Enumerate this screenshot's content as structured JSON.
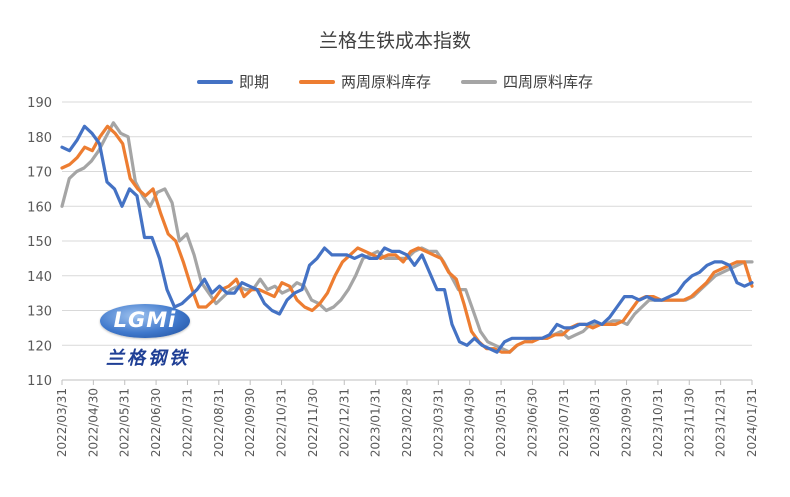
{
  "chart_data": {
    "type": "line",
    "title": "兰格生铁成本指数",
    "ylim": [
      110,
      190
    ],
    "yticks": [
      110,
      120,
      130,
      140,
      150,
      160,
      170,
      180,
      190
    ],
    "xtick_labels": [
      "2022/03/31",
      "2022/04/30",
      "2022/05/31",
      "2022/06/30",
      "2022/07/31",
      "2022/08/31",
      "2022/09/30",
      "2022/10/31",
      "2022/11/30",
      "2022/12/31",
      "2023/01/31",
      "2023/02/28",
      "2023/03/31",
      "2023/04/30",
      "2023/05/31",
      "2023/06/30",
      "2023/07/31",
      "2023/08/31",
      "2023/09/30",
      "2023/10/31",
      "2023/11/30",
      "2023/12/31",
      "2024/01/31"
    ],
    "legend_position": "top",
    "grid": true,
    "series": [
      {
        "name": "即期",
        "color": "#4472C4",
        "values": [
          177,
          176,
          179,
          183,
          181,
          178,
          167,
          165,
          160,
          165,
          163,
          151,
          151,
          145,
          136,
          131,
          132,
          134,
          136,
          139,
          135,
          137,
          135,
          135,
          138,
          137,
          136,
          132,
          130,
          129,
          133,
          135,
          136,
          143,
          145,
          148,
          146,
          146,
          146,
          145,
          146,
          145,
          145,
          148,
          147,
          147,
          146,
          143,
          146,
          141,
          136,
          136,
          126,
          121,
          120,
          122,
          120,
          119,
          118,
          121,
          122,
          122,
          122,
          122,
          122,
          123,
          126,
          125,
          125,
          126,
          126,
          127,
          126,
          128,
          131,
          134,
          134,
          133,
          134,
          133,
          133,
          134,
          135,
          138,
          140,
          141,
          143,
          144,
          144,
          143,
          138,
          137,
          138
        ]
      },
      {
        "name": "两周原料库存",
        "color": "#ED7D31",
        "values": [
          171,
          172,
          174,
          177,
          176,
          180,
          183,
          181,
          178,
          168,
          165,
          163,
          165,
          158,
          152,
          150,
          144,
          137,
          131,
          131,
          133,
          136,
          137,
          139,
          134,
          136,
          136,
          135,
          134,
          138,
          137,
          133,
          131,
          130,
          132,
          135,
          140,
          144,
          146,
          148,
          147,
          146,
          145,
          146,
          146,
          144,
          147,
          148,
          147,
          146,
          145,
          141,
          139,
          132,
          124,
          121,
          119,
          119,
          118,
          118,
          120,
          121,
          121,
          122,
          122,
          123,
          123,
          125,
          126,
          126,
          125,
          126,
          126,
          126,
          127,
          130,
          133,
          134,
          134,
          133,
          133,
          133,
          133,
          134,
          136,
          138,
          141,
          142,
          143,
          144,
          144,
          137
        ]
      },
      {
        "name": "四周原料库存",
        "color": "#A5A5A5",
        "values": [
          160,
          168,
          170,
          171,
          173,
          176,
          180,
          184,
          181,
          180,
          167,
          163,
          160,
          164,
          165,
          161,
          150,
          152,
          146,
          138,
          135,
          132,
          134,
          136,
          137,
          136,
          136,
          139,
          136,
          137,
          135,
          136,
          138,
          137,
          133,
          132,
          130,
          131,
          133,
          136,
          140,
          145,
          146,
          147,
          145,
          145,
          145,
          145,
          147,
          148,
          147,
          147,
          144,
          140,
          136,
          136,
          130,
          124,
          121,
          120,
          119,
          118,
          120,
          121,
          122,
          122,
          122,
          123,
          124,
          122,
          123,
          124,
          126,
          126,
          126,
          127,
          127,
          126,
          129,
          131,
          133,
          133,
          133,
          133,
          133,
          133,
          134,
          136,
          138,
          140,
          141,
          142,
          143,
          144,
          144
        ]
      }
    ]
  },
  "logo": {
    "text": "LGMi",
    "chinese": "兰格钢铁"
  }
}
